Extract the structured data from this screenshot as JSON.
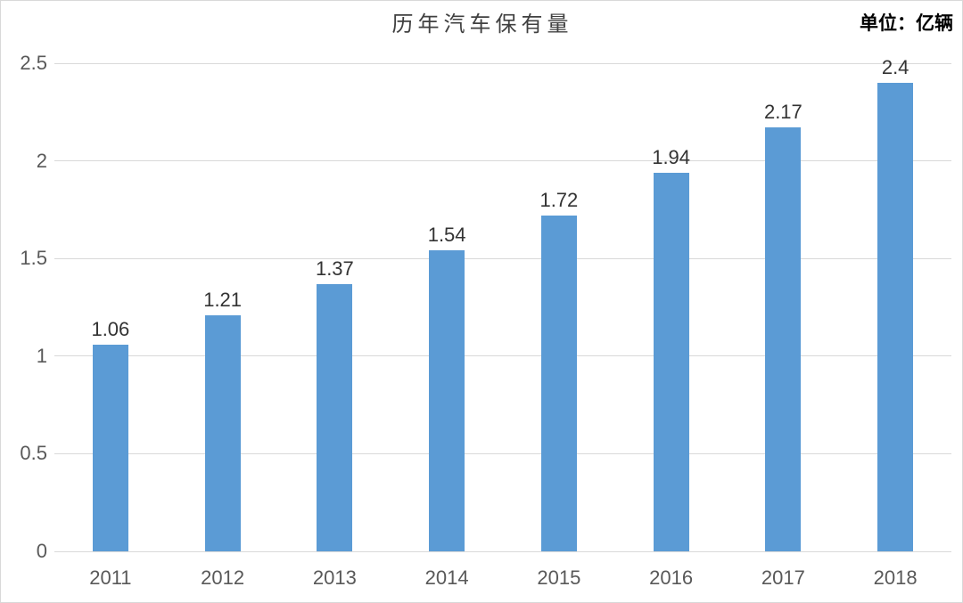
{
  "chart_data": {
    "type": "bar",
    "title": "历年汽车保有量",
    "unit_label": "单位：亿辆",
    "categories": [
      "2011",
      "2012",
      "2013",
      "2014",
      "2015",
      "2016",
      "2017",
      "2018"
    ],
    "values": [
      1.06,
      1.21,
      1.37,
      1.54,
      1.72,
      1.94,
      2.17,
      2.4
    ],
    "value_labels": [
      "1.06",
      "1.21",
      "1.37",
      "1.54",
      "1.72",
      "1.94",
      "2.17",
      "2.4"
    ],
    "yticks": [
      "0",
      "0.5",
      "1",
      "1.5",
      "2",
      "2.5"
    ],
    "ylim": [
      0,
      2.5
    ],
    "xlabel": "",
    "ylabel": "",
    "grid": true,
    "legend": "none",
    "colors": {
      "bar": "#5b9bd5",
      "gridline": "#d9d9d9",
      "axis_tick_label": "#595959",
      "data_label": "#333333",
      "title": "#404040",
      "unit_label": "#000000",
      "chart_border": "#d9d9d9",
      "background": "#ffffff"
    }
  }
}
